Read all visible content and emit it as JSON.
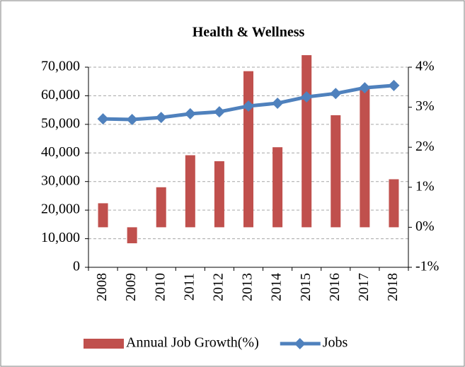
{
  "chart_data": {
    "type": "combo",
    "title": "Health & Wellness",
    "categories": [
      "2008",
      "2009",
      "2010",
      "2011",
      "2012",
      "2013",
      "2014",
      "2015",
      "2016",
      "2017",
      "2018"
    ],
    "series": [
      {
        "name": "Annual Job Growth(%)",
        "type": "bar",
        "axis": "y2",
        "color": "#c0504d",
        "values": [
          0.6,
          -0.4,
          1.0,
          1.8,
          1.65,
          3.9,
          2.0,
          4.3,
          2.8,
          3.5,
          1.2
        ]
      },
      {
        "name": "Jobs",
        "type": "line",
        "axis": "y",
        "color": "#4f81bd",
        "values": [
          51900,
          51700,
          52400,
          53700,
          54400,
          56400,
          57400,
          59600,
          60800,
          62800,
          63600
        ]
      }
    ],
    "ylim": [
      0,
      70000
    ],
    "yticks": [
      0,
      {
        "value": 10000,
        "label": "10,000"
      },
      {
        "value": 20000,
        "label": "20,000"
      },
      {
        "value": 30000,
        "label": "30,000"
      },
      {
        "value": 40000,
        "label": "40,000"
      },
      {
        "value": 50000,
        "label": "50,000"
      },
      {
        "value": 60000,
        "label": "60,000"
      },
      {
        "value": 70000,
        "label": "70,000"
      }
    ],
    "y2lim": [
      -1,
      4
    ],
    "y2ticks": [
      {
        "value": -1,
        "label": "-1%"
      },
      {
        "value": 0,
        "label": "0%"
      },
      {
        "value": 1,
        "label": "1%"
      },
      {
        "value": 2,
        "label": "2%"
      },
      {
        "value": 3,
        "label": "3%"
      },
      {
        "value": 4,
        "label": "4%"
      }
    ],
    "grid": true,
    "legend": "bottom"
  }
}
